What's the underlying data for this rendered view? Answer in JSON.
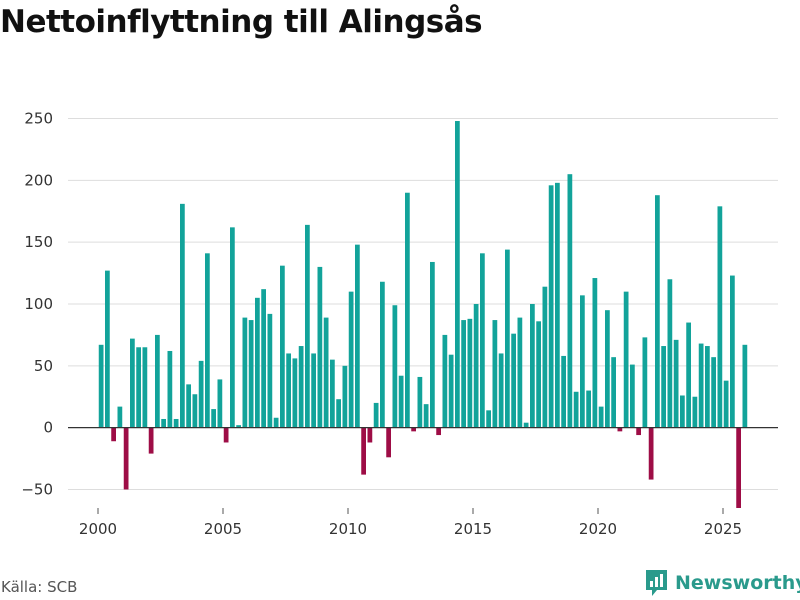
{
  "chart_data": {
    "type": "bar",
    "title": "Nettoinflyttning till Alingsås",
    "xlabel": "",
    "ylabel": "",
    "ylim": [
      -65,
      265
    ],
    "xlim": [
      1998.8,
      2027.2
    ],
    "y_ticks": [
      -50,
      0,
      50,
      100,
      150,
      200,
      250
    ],
    "y_tick_labels": [
      "−50",
      "0",
      "50",
      "100",
      "150",
      "200",
      "250"
    ],
    "x_ticks": [
      2000,
      2005,
      2010,
      2015,
      2020,
      2025
    ],
    "x_tick_labels": [
      "2000",
      "2005",
      "2010",
      "2015",
      "2020",
      "2025"
    ],
    "grid": true,
    "positive_color": "#12a39a",
    "negative_color": "#9e0d46",
    "x": [
      2000.125,
      2000.375,
      2000.625,
      2000.875,
      2001.125,
      2001.375,
      2001.625,
      2001.875,
      2002.125,
      2002.375,
      2002.625,
      2002.875,
      2003.125,
      2003.375,
      2003.625,
      2003.875,
      2004.125,
      2004.375,
      2004.625,
      2004.875,
      2005.125,
      2005.375,
      2005.625,
      2005.875,
      2006.125,
      2006.375,
      2006.625,
      2006.875,
      2007.125,
      2007.375,
      2007.625,
      2007.875,
      2008.125,
      2008.375,
      2008.625,
      2008.875,
      2009.125,
      2009.375,
      2009.625,
      2009.875,
      2010.125,
      2010.375,
      2010.625,
      2010.875,
      2011.125,
      2011.375,
      2011.625,
      2011.875,
      2012.125,
      2012.375,
      2012.625,
      2012.875,
      2013.125,
      2013.375,
      2013.625,
      2013.875,
      2014.125,
      2014.375,
      2014.625,
      2014.875,
      2015.125,
      2015.375,
      2015.625,
      2015.875,
      2016.125,
      2016.375,
      2016.625,
      2016.875,
      2017.125,
      2017.375,
      2017.625,
      2017.875,
      2018.125,
      2018.375,
      2018.625,
      2018.875,
      2019.125,
      2019.375,
      2019.625,
      2019.875,
      2020.125,
      2020.375,
      2020.625,
      2020.875,
      2021.125,
      2021.375,
      2021.625,
      2021.875,
      2022.125,
      2022.375,
      2022.625,
      2022.875,
      2023.125,
      2023.375,
      2023.625,
      2023.875,
      2024.125,
      2024.375,
      2024.625,
      2024.875,
      2025.125,
      2025.375,
      2025.625,
      2025.875
    ],
    "values": [
      67,
      127,
      -11,
      17,
      -50,
      72,
      65,
      65,
      -21,
      75,
      7,
      62,
      7,
      181,
      35,
      27,
      54,
      141,
      15,
      39,
      -12,
      162,
      2,
      89,
      87,
      105,
      112,
      92,
      8,
      131,
      60,
      56,
      66,
      164,
      60,
      130,
      89,
      55,
      23,
      50,
      110,
      148,
      -38,
      -12,
      20,
      118,
      -24,
      99,
      42,
      190,
      -3,
      41,
      19,
      134,
      -6,
      75,
      59,
      248,
      87,
      88,
      100,
      141,
      14,
      87,
      60,
      144,
      76,
      89,
      4,
      100,
      86,
      114,
      196,
      198,
      58,
      205,
      29,
      107,
      30,
      121,
      17,
      95,
      57,
      -3,
      110,
      51,
      -6,
      73,
      -42,
      188,
      66,
      120,
      71,
      26,
      85,
      25,
      68,
      66,
      57,
      179,
      38,
      123,
      -65,
      67
    ]
  },
  "footer": {
    "source": "Källa: SCB",
    "brand": "Newsworthy"
  }
}
